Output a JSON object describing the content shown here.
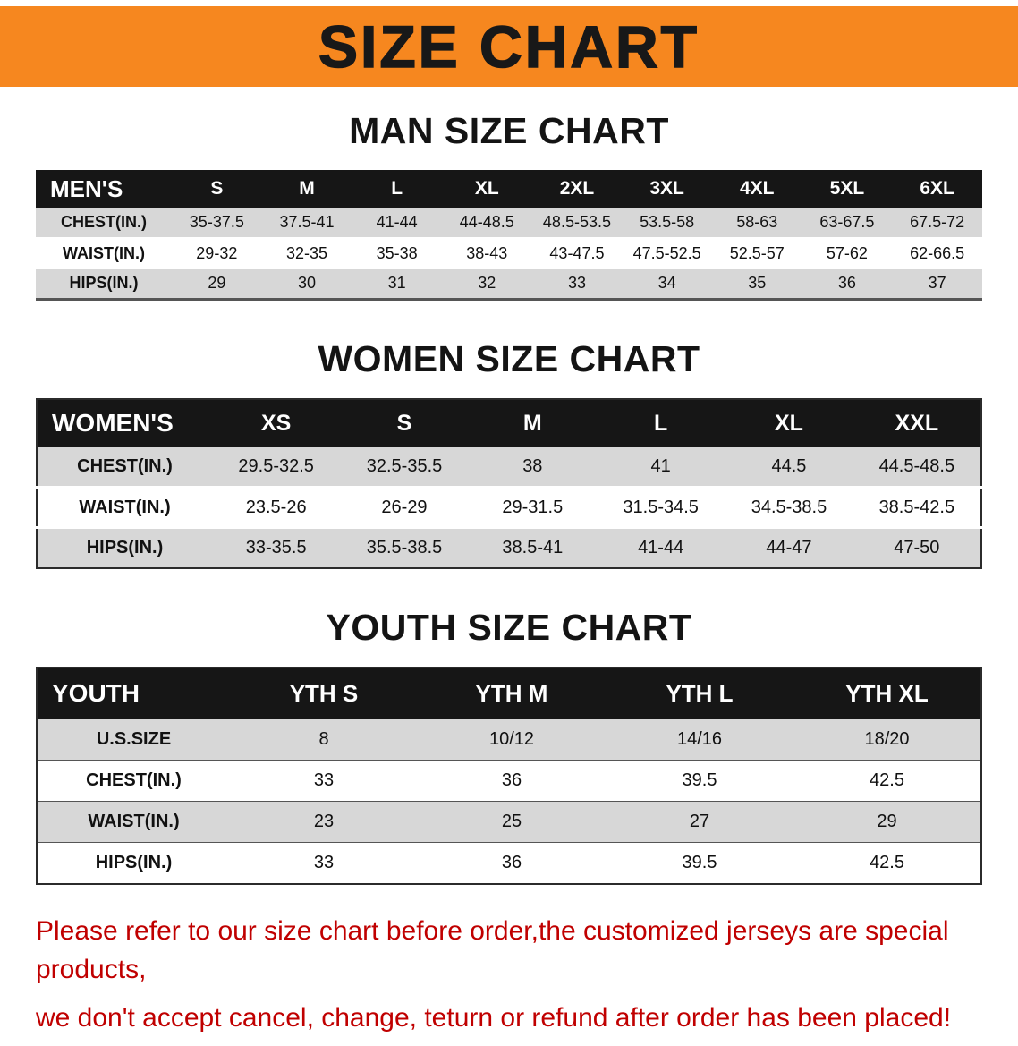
{
  "banner": {
    "title": "SIZE CHART"
  },
  "sections": [
    {
      "title": "MAN SIZE CHART",
      "table": {
        "name": "men-size-table",
        "corner": "MEN'S",
        "columns": [
          "S",
          "M",
          "L",
          "XL",
          "2XL",
          "3XL",
          "4XL",
          "5XL",
          "6XL"
        ],
        "rows": [
          {
            "label": "CHEST(IN.)",
            "values": [
              "35-37.5",
              "37.5-41",
              "41-44",
              "44-48.5",
              "48.5-53.5",
              "53.5-58",
              "58-63",
              "63-67.5",
              "67.5-72"
            ]
          },
          {
            "label": "WAIST(IN.)",
            "values": [
              "29-32",
              "32-35",
              "35-38",
              "38-43",
              "43-47.5",
              "47.5-52.5",
              "52.5-57",
              "57-62",
              "62-66.5"
            ]
          },
          {
            "label": "HIPS(IN.)",
            "values": [
              "29",
              "30",
              "31",
              "32",
              "33",
              "34",
              "35",
              "36",
              "37"
            ]
          }
        ]
      }
    },
    {
      "title": "WOMEN SIZE CHART",
      "table": {
        "name": "women-size-table",
        "corner": "WOMEN'S",
        "columns": [
          "XS",
          "S",
          "M",
          "L",
          "XL",
          "XXL"
        ],
        "rows": [
          {
            "label": "CHEST(IN.)",
            "values": [
              "29.5-32.5",
              "32.5-35.5",
              "38",
              "41",
              "44.5",
              "44.5-48.5"
            ]
          },
          {
            "label": "WAIST(IN.)",
            "values": [
              "23.5-26",
              "26-29",
              "29-31.5",
              "31.5-34.5",
              "34.5-38.5",
              "38.5-42.5"
            ]
          },
          {
            "label": "HIPS(IN.)",
            "values": [
              "33-35.5",
              "35.5-38.5",
              "38.5-41",
              "41-44",
              "44-47",
              "47-50"
            ]
          }
        ]
      }
    },
    {
      "title": "YOUTH SIZE CHART",
      "table": {
        "name": "youth-size-table",
        "corner": "YOUTH",
        "columns": [
          "YTH S",
          "YTH M",
          "YTH L",
          "YTH XL"
        ],
        "rows": [
          {
            "label": "U.S.SIZE",
            "values": [
              "8",
              "10/12",
              "14/16",
              "18/20"
            ]
          },
          {
            "label": "CHEST(IN.)",
            "values": [
              "33",
              "36",
              "39.5",
              "42.5"
            ]
          },
          {
            "label": "WAIST(IN.)",
            "values": [
              "23",
              "25",
              "27",
              "29"
            ]
          },
          {
            "label": "HIPS(IN.)",
            "values": [
              "33",
              "36",
              "39.5",
              "42.5"
            ]
          }
        ]
      }
    }
  ],
  "footer": {
    "lines": [
      "Please refer to our size chart before order,the customized jerseys are special products,",
      "we don't accept cancel, change, teturn or refund after order has been placed!"
    ]
  },
  "theme": {
    "banner_orange": "#f6871f",
    "header_black": "#161616",
    "row_gray": "#d7d7d7",
    "notice_red": "#c00000"
  }
}
